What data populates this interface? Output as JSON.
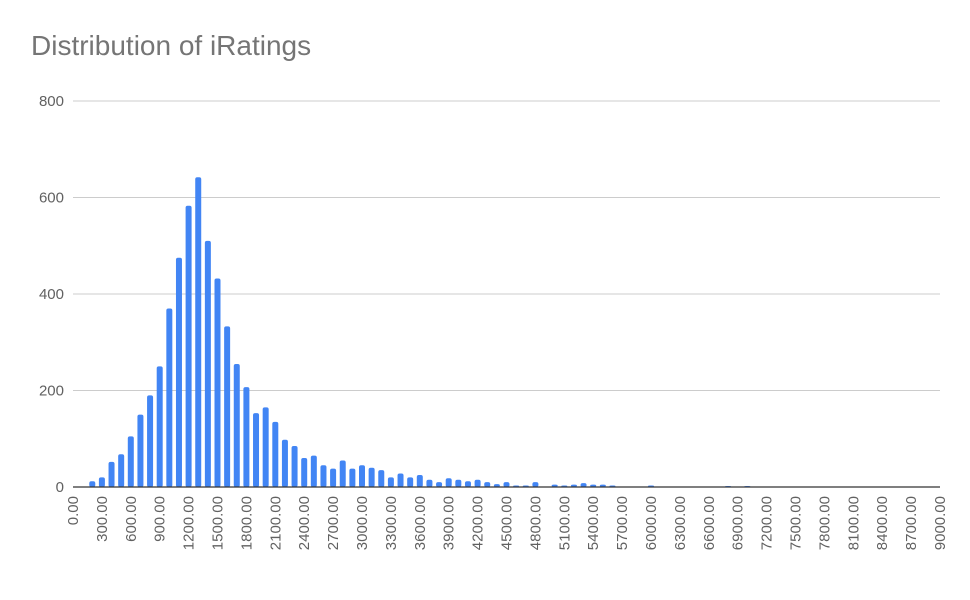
{
  "chart_data": {
    "type": "bar",
    "title": "Distribution of iRatings",
    "xlabel": "",
    "ylabel": "",
    "ylim": [
      0,
      800
    ],
    "y_ticks": [
      0,
      200,
      400,
      600,
      800
    ],
    "x_tick_labels": [
      "0.00",
      "300.00",
      "600.00",
      "900.00",
      "1200.00",
      "1500.00",
      "1800.00",
      "2100.00",
      "2400.00",
      "2700.00",
      "3000.00",
      "3300.00",
      "3600.00",
      "3900.00",
      "4200.00",
      "4500.00",
      "4800.00",
      "5100.00",
      "5400.00",
      "5700.00",
      "6000.00",
      "6300.00",
      "6600.00",
      "6900.00",
      "7200.00",
      "7500.00",
      "7800.00",
      "8100.00",
      "8400.00",
      "8700.00",
      "9000.00"
    ],
    "bin_width": 100,
    "xlim": [
      0,
      9000
    ],
    "grid": true,
    "legend": "none",
    "bar_color": "#4285f4",
    "bins": [
      {
        "x": 200,
        "y": 12
      },
      {
        "x": 300,
        "y": 20
      },
      {
        "x": 400,
        "y": 52
      },
      {
        "x": 500,
        "y": 68
      },
      {
        "x": 600,
        "y": 105
      },
      {
        "x": 700,
        "y": 150
      },
      {
        "x": 800,
        "y": 190
      },
      {
        "x": 900,
        "y": 250
      },
      {
        "x": 1000,
        "y": 370
      },
      {
        "x": 1100,
        "y": 475
      },
      {
        "x": 1200,
        "y": 583
      },
      {
        "x": 1300,
        "y": 642
      },
      {
        "x": 1400,
        "y": 510
      },
      {
        "x": 1500,
        "y": 432
      },
      {
        "x": 1600,
        "y": 333
      },
      {
        "x": 1700,
        "y": 255
      },
      {
        "x": 1800,
        "y": 207
      },
      {
        "x": 1900,
        "y": 153
      },
      {
        "x": 2000,
        "y": 165
      },
      {
        "x": 2100,
        "y": 135
      },
      {
        "x": 2200,
        "y": 98
      },
      {
        "x": 2300,
        "y": 85
      },
      {
        "x": 2400,
        "y": 60
      },
      {
        "x": 2500,
        "y": 65
      },
      {
        "x": 2600,
        "y": 45
      },
      {
        "x": 2700,
        "y": 38
      },
      {
        "x": 2800,
        "y": 55
      },
      {
        "x": 2900,
        "y": 38
      },
      {
        "x": 3000,
        "y": 45
      },
      {
        "x": 3100,
        "y": 40
      },
      {
        "x": 3200,
        "y": 35
      },
      {
        "x": 3300,
        "y": 20
      },
      {
        "x": 3400,
        "y": 28
      },
      {
        "x": 3500,
        "y": 20
      },
      {
        "x": 3600,
        "y": 25
      },
      {
        "x": 3700,
        "y": 15
      },
      {
        "x": 3800,
        "y": 10
      },
      {
        "x": 3900,
        "y": 18
      },
      {
        "x": 4000,
        "y": 15
      },
      {
        "x": 4100,
        "y": 12
      },
      {
        "x": 4200,
        "y": 15
      },
      {
        "x": 4300,
        "y": 10
      },
      {
        "x": 4400,
        "y": 6
      },
      {
        "x": 4500,
        "y": 10
      },
      {
        "x": 4600,
        "y": 3
      },
      {
        "x": 4700,
        "y": 3
      },
      {
        "x": 4800,
        "y": 10
      },
      {
        "x": 5000,
        "y": 5
      },
      {
        "x": 5100,
        "y": 3
      },
      {
        "x": 5200,
        "y": 5
      },
      {
        "x": 5300,
        "y": 8
      },
      {
        "x": 5400,
        "y": 5
      },
      {
        "x": 5500,
        "y": 5
      },
      {
        "x": 5600,
        "y": 3
      },
      {
        "x": 6000,
        "y": 3
      },
      {
        "x": 6800,
        "y": 2
      },
      {
        "x": 7000,
        "y": 2
      }
    ]
  }
}
